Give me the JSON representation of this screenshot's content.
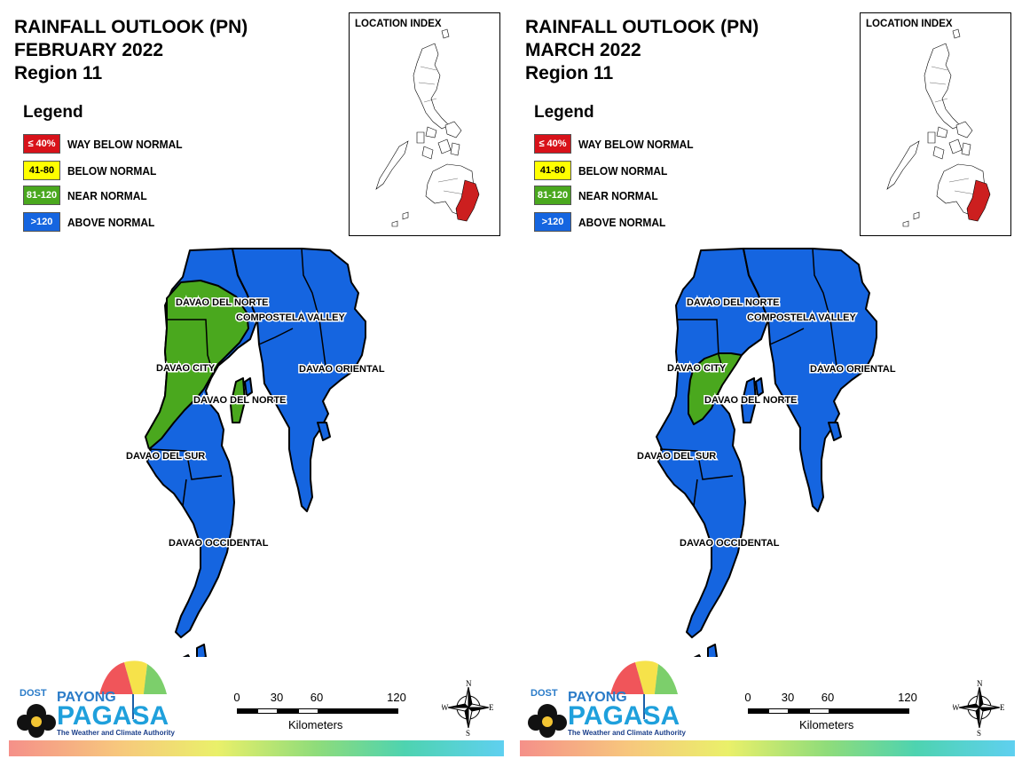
{
  "colors": {
    "way_below": "#d8121a",
    "below": "#ffff00",
    "near": "#4aa81e",
    "above": "#1565e0",
    "index_highlight": "#cc1f1f"
  },
  "legend": {
    "title": "Legend",
    "items": [
      {
        "range": "≤ 40%",
        "label": "WAY BELOW NORMAL",
        "color": "#d8121a",
        "text_color": "#ffffff"
      },
      {
        "range": "41-80",
        "label": "BELOW NORMAL",
        "color": "#ffff00",
        "text_color": "#000000"
      },
      {
        "range": "81-120",
        "label": "NEAR NORMAL",
        "color": "#4aa81e",
        "text_color": "#ffffff"
      },
      {
        "range": ">120",
        "label": "ABOVE NORMAL",
        "color": "#1565e0",
        "text_color": "#ffffff"
      }
    ]
  },
  "index_title": "LOCATION INDEX",
  "map_labels": {
    "davao_del_norte": "DAVAO DEL NORTE",
    "compostela_valley": "COMPOSTELA VALLEY",
    "davao_city": "DAVAO CITY",
    "davao_oriental": "DAVAO ORIENTAL",
    "davao_del_norte_2": "DAVAO DEL NORTE",
    "davao_del_sur": "DAVAO DEL SUR",
    "davao_occidental": "DAVAO OCCIDENTAL"
  },
  "scale": {
    "ticks": [
      "0",
      "30",
      "60",
      "120"
    ],
    "unit": "Kilometers"
  },
  "compass": {
    "n": "N",
    "s": "S",
    "e": "E",
    "w": "W"
  },
  "logo": {
    "dost": "DOST",
    "payong": "PAYONG",
    "pagasa": "PAGASA",
    "tagline": "The Weather and Climate Authority"
  },
  "panels": [
    {
      "title": [
        "RAINFALL OUTLOOK (PN)",
        "FEBRUARY 2022",
        "Region 11"
      ],
      "outlook": {
        "davao_del_norte": "near normal (west), above normal (east)",
        "davao_city": "near normal",
        "davao_del_sur": "near normal (north), above normal (south)",
        "compostela_valley": "above normal",
        "davao_oriental": "above normal",
        "davao_occidental": "above normal"
      }
    },
    {
      "title": [
        "RAINFALL OUTLOOK (PN)",
        "MARCH 2022",
        "Region 11"
      ],
      "outlook": {
        "davao_del_norte": "above normal",
        "davao_city": "near normal (east), above normal (west)",
        "davao_del_sur": "above normal",
        "compostela_valley": "above normal",
        "davao_oriental": "above normal",
        "davao_occidental": "above normal"
      }
    }
  ]
}
